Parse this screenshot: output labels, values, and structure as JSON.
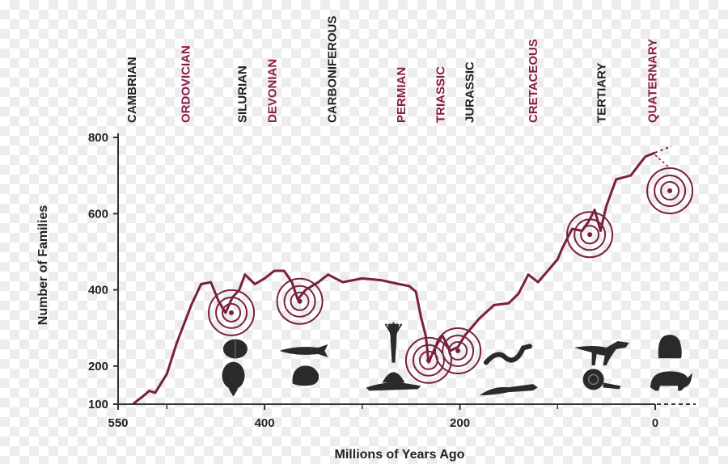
{
  "chart_data": {
    "type": "line",
    "title": "",
    "xlabel": "Millions of Years Ago",
    "ylabel": "Number of Families",
    "xlim": [
      550,
      0
    ],
    "ylim": [
      100,
      800
    ],
    "x_ticks": [
      550,
      400,
      200,
      0
    ],
    "y_ticks": [
      100,
      200,
      400,
      600,
      800
    ],
    "colors": {
      "line": "#7a1f3d",
      "accent": "#8b1a4a",
      "text": "#222222",
      "axis": "#333333"
    },
    "periods": [
      {
        "name": "CAMBRIAN",
        "x": 536,
        "emphasis": false
      },
      {
        "name": "ORDOVICIAN",
        "x": 481,
        "emphasis": true
      },
      {
        "name": "SILURIAN",
        "x": 423,
        "emphasis": false
      },
      {
        "name": "DEVONIAN",
        "x": 392,
        "emphasis": true
      },
      {
        "name": "CARBONIFEROUS",
        "x": 331,
        "emphasis": false
      },
      {
        "name": "PERMIAN",
        "x": 260,
        "emphasis": true
      },
      {
        "name": "TRIASSIC",
        "x": 220,
        "emphasis": true
      },
      {
        "name": "JURASSIC",
        "x": 190,
        "emphasis": false
      },
      {
        "name": "CRETACEOUS",
        "x": 125,
        "emphasis": true
      },
      {
        "name": "TERTIARY",
        "x": 55,
        "emphasis": false
      },
      {
        "name": "QUATERNARY",
        "x": 3,
        "emphasis": true
      }
    ],
    "series": [
      {
        "x": [
          535,
          525,
          518,
          512,
          500,
          490,
          475,
          465,
          455,
          447,
          440,
          433,
          426,
          420,
          410,
          400,
          390,
          380,
          372,
          366,
          358,
          345,
          335,
          320,
          300,
          280,
          262,
          252,
          245,
          240,
          235,
          232,
          225,
          218,
          210,
          202,
          195,
          180,
          165,
          150,
          140,
          130,
          120,
          110,
          100,
          95,
          85,
          75,
          68,
          62,
          56,
          50,
          40,
          25,
          10,
          0
        ],
        "y": [
          100,
          120,
          135,
          130,
          180,
          260,
          360,
          415,
          420,
          370,
          340,
          380,
          400,
          440,
          415,
          430,
          450,
          450,
          420,
          375,
          400,
          420,
          440,
          420,
          430,
          425,
          415,
          410,
          395,
          330,
          280,
          210,
          250,
          280,
          240,
          250,
          280,
          325,
          360,
          365,
          390,
          440,
          420,
          450,
          480,
          510,
          560,
          555,
          580,
          610,
          555,
          620,
          690,
          700,
          750,
          760
        ]
      }
    ],
    "extinction_markers": [
      {
        "x": 434,
        "y": 340
      },
      {
        "x": 364,
        "y": 370
      },
      {
        "x": 232,
        "y": 215
      },
      {
        "x": 202,
        "y": 240
      },
      {
        "x": 67,
        "y": 545
      },
      {
        "x": -15,
        "y": 660
      }
    ],
    "fossils": [
      {
        "icon": "trilobite-icon",
        "x": 430,
        "y": 245
      },
      {
        "icon": "eurypterid-icon",
        "x": 432,
        "y": 175
      },
      {
        "icon": "armored-fish-icon",
        "x": 360,
        "y": 240
      },
      {
        "icon": "coral-icon",
        "x": 358,
        "y": 175
      },
      {
        "icon": "crinoid-icon",
        "x": 268,
        "y": 260
      },
      {
        "icon": "dimetrodon-icon",
        "x": 268,
        "y": 165
      },
      {
        "icon": "ichthyosaur-icon",
        "x": 150,
        "y": 235
      },
      {
        "icon": "crocodile-icon",
        "x": 150,
        "y": 140
      },
      {
        "icon": "theropod-icon",
        "x": 55,
        "y": 240
      },
      {
        "icon": "ammonite-icon",
        "x": 60,
        "y": 165
      },
      {
        "icon": "gorilla-icon",
        "x": -15,
        "y": 250
      },
      {
        "icon": "rhino-icon",
        "x": -15,
        "y": 165
      }
    ]
  }
}
